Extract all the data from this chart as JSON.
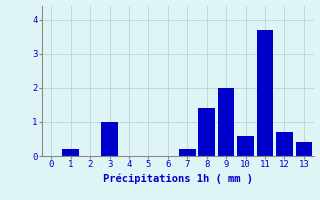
{
  "categories": [
    0,
    1,
    2,
    3,
    4,
    5,
    6,
    7,
    8,
    9,
    10,
    11,
    12,
    13
  ],
  "values": [
    0.0,
    0.2,
    0.0,
    1.0,
    0.0,
    0.0,
    0.0,
    0.2,
    1.4,
    2.0,
    0.6,
    3.7,
    0.7,
    0.4
  ],
  "bar_color": "#0000cc",
  "background_color": "#dff4f4",
  "grid_color": "#b0d8d8",
  "xlabel": "Précipitations 1h ( mm )",
  "xlabel_color": "#0000cc",
  "tick_color": "#0000cc",
  "ylim": [
    0,
    4.4
  ],
  "yticks": [
    0,
    1,
    2,
    3,
    4
  ],
  "bar_width": 0.85
}
